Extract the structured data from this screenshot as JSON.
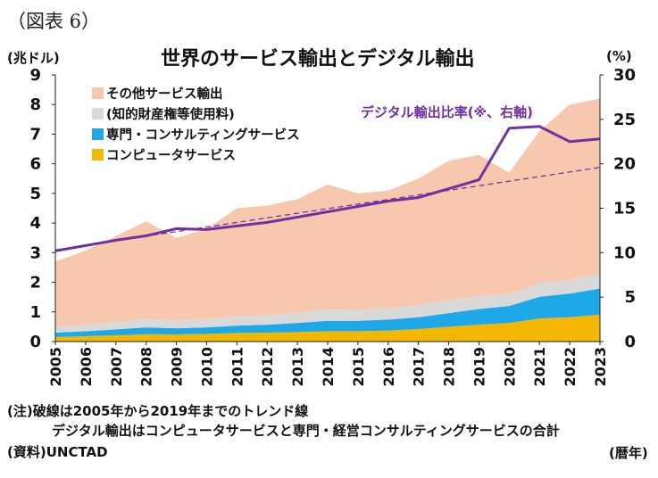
{
  "figure_label": "（図表 6）",
  "left_axis_unit": "(兆ドル)",
  "right_axis_unit": "(%)",
  "x_axis_unit": "(暦年)",
  "notes": {
    "note_line1": "(注)破線は2005年から2019年までのトレンド線",
    "note_line2": "デジタル輸出はコンピュータサービスと専門・経営コンサルティングサービスの合計",
    "source": "(資料)UNCTAD"
  },
  "chart_data": {
    "type": "area",
    "title": "世界のサービス輸出とデジタル輸出",
    "x": [
      2005,
      2006,
      2007,
      2008,
      2009,
      2010,
      2011,
      2012,
      2013,
      2014,
      2015,
      2016,
      2017,
      2018,
      2019,
      2020,
      2021,
      2022,
      2023
    ],
    "y_left_ticks": [
      "0",
      "1",
      "2",
      "3",
      "4",
      "5",
      "6",
      "7",
      "8",
      "9"
    ],
    "y_right_ticks": [
      "0",
      "5",
      "10",
      "15",
      "20",
      "25",
      "30"
    ],
    "ylim_left": [
      0,
      9
    ],
    "ylim_right": [
      0,
      30
    ],
    "stacked": true,
    "series": [
      {
        "name": "コンピュータサービス",
        "color": "#F5B800",
        "axis": "left",
        "values": [
          0.15,
          0.18,
          0.21,
          0.25,
          0.24,
          0.26,
          0.29,
          0.3,
          0.32,
          0.35,
          0.35,
          0.37,
          0.42,
          0.5,
          0.57,
          0.63,
          0.78,
          0.82,
          0.91
        ]
      },
      {
        "name": "専門・コンサルティングサービス",
        "color": "#1EA8E8",
        "axis": "left",
        "values": [
          0.15,
          0.17,
          0.2,
          0.23,
          0.21,
          0.22,
          0.25,
          0.27,
          0.31,
          0.35,
          0.35,
          0.37,
          0.4,
          0.46,
          0.53,
          0.57,
          0.73,
          0.8,
          0.88
        ]
      },
      {
        "name": "(知的財産権等使用料)",
        "color": "#D9D9D9",
        "axis": "left",
        "values": [
          0.2,
          0.22,
          0.25,
          0.28,
          0.27,
          0.28,
          0.31,
          0.32,
          0.36,
          0.38,
          0.37,
          0.38,
          0.41,
          0.43,
          0.43,
          0.4,
          0.45,
          0.45,
          0.5
        ]
      },
      {
        "name": "その他サービス輸出",
        "color": "#F8C8AE",
        "axis": "left",
        "values": [
          2.2,
          2.5,
          2.9,
          3.3,
          2.78,
          3.04,
          3.65,
          3.7,
          3.81,
          4.22,
          3.93,
          3.98,
          4.27,
          4.71,
          4.77,
          4.1,
          5.14,
          5.93,
          5.91
        ]
      }
    ],
    "line_series": [
      {
        "name": "デジタル輸出比率(※、右軸)",
        "color": "#7030A0",
        "axis": "right",
        "values": [
          10.2,
          10.8,
          11.4,
          11.9,
          12.7,
          12.6,
          13.0,
          13.4,
          14.0,
          14.6,
          15.2,
          15.8,
          16.2,
          17.2,
          18.2,
          24.0,
          24.2,
          22.5,
          22.8
        ]
      },
      {
        "name": "trend",
        "color": "#7030A0",
        "axis": "right",
        "dashed": true,
        "values": [
          10.3,
          null,
          null,
          null,
          null,
          null,
          null,
          null,
          null,
          null,
          null,
          null,
          null,
          null,
          null,
          null,
          null,
          null,
          19.6
        ]
      }
    ],
    "annotation": "デジタル輸出比率(※、右軸)",
    "grid": false,
    "legend_position": "top-left"
  }
}
